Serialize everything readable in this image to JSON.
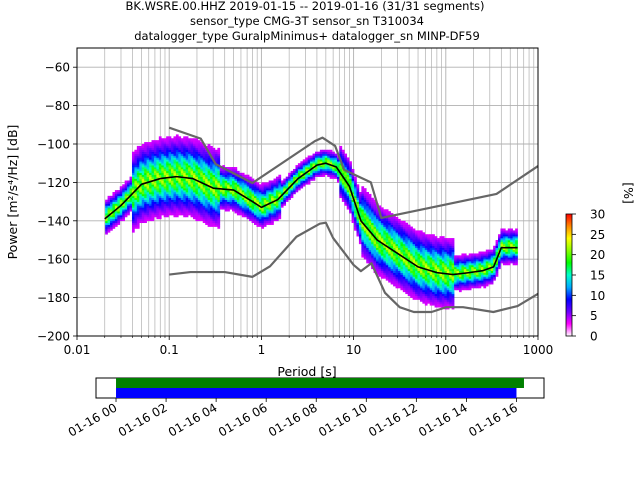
{
  "chart_data": {
    "type": "heatmap",
    "title_lines": [
      "BK.WSRE.00.HHZ   2019-01-15 -- 2019-01-16  (31/31 segments)",
      "sensor_type CMG-3T sensor_sn T310034",
      "datalogger_type GuralpMinimus+ datalogger_sn MINP-DF59"
    ],
    "xlabel": "Period [s]",
    "ylabel": "Power [m²/s⁴/Hz] [dB]",
    "x_scale": "log",
    "xlim": [
      0.01,
      1000
    ],
    "ylim": [
      -200,
      -50
    ],
    "x_ticks": [
      0.01,
      0.1,
      1,
      10,
      100,
      1000
    ],
    "x_tick_labels": [
      "0.01",
      "0.1",
      "1",
      "10",
      "100",
      "1000"
    ],
    "y_ticks": [
      -200,
      -180,
      -160,
      -140,
      -120,
      -100,
      -80,
      -60
    ],
    "y_tick_labels": [
      "−200",
      "−180",
      "−160",
      "−140",
      "−120",
      "−100",
      "−80",
      "−60"
    ],
    "grid": true,
    "colorbar": {
      "label": "[%]",
      "min": 0,
      "max": 30,
      "ticks": [
        0,
        5,
        10,
        15,
        20,
        25,
        30
      ],
      "tick_labels": [
        "0",
        "5",
        "10",
        "15",
        "20",
        "25",
        "30"
      ],
      "colormap": [
        "#ffffff",
        "#ff00ff",
        "#6a00ff",
        "#0000ff",
        "#00aaff",
        "#00ffcc",
        "#00ff00",
        "#88ff00",
        "#ffff00",
        "#ff8800",
        "#ff0000"
      ]
    },
    "series": [
      {
        "role": "noise-model-high",
        "color": "#666666",
        "points": [
          [
            0.1,
            -91.5
          ],
          [
            0.22,
            -97.2
          ],
          [
            0.32,
            -110.5
          ],
          [
            0.8,
            -120.3
          ],
          [
            3.8,
            -98.5
          ],
          [
            4.6,
            -96.7
          ],
          [
            6.3,
            -101
          ],
          [
            7.9,
            -113.5
          ],
          [
            15.4,
            -120
          ],
          [
            20,
            -138.5
          ],
          [
            354.8,
            -126
          ],
          [
            1000,
            -111.5
          ]
        ]
      },
      {
        "role": "noise-model-low",
        "color": "#666666",
        "points": [
          [
            0.1,
            -168
          ],
          [
            0.17,
            -166.7
          ],
          [
            0.4,
            -166.7
          ],
          [
            0.8,
            -169.2
          ],
          [
            1.24,
            -163.7
          ],
          [
            2.4,
            -148.3
          ],
          [
            4.3,
            -141.5
          ],
          [
            5,
            -141
          ],
          [
            6,
            -149
          ],
          [
            10,
            -163
          ],
          [
            12,
            -166.2
          ],
          [
            15.6,
            -162.1
          ],
          [
            21.9,
            -177.5
          ],
          [
            31.6,
            -185
          ],
          [
            45,
            -187.5
          ],
          [
            70,
            -187.5
          ],
          [
            101,
            -185
          ],
          [
            154,
            -185
          ],
          [
            328,
            -187.5
          ],
          [
            600,
            -184.4
          ],
          [
            1000,
            -178
          ]
        ]
      },
      {
        "role": "mode",
        "color": "#000000",
        "points": [
          [
            0.02,
            -139
          ],
          [
            0.03,
            -132
          ],
          [
            0.05,
            -121
          ],
          [
            0.08,
            -118
          ],
          [
            0.12,
            -117
          ],
          [
            0.18,
            -118
          ],
          [
            0.3,
            -123
          ],
          [
            0.5,
            -124
          ],
          [
            0.8,
            -130
          ],
          [
            1,
            -133
          ],
          [
            1.5,
            -129
          ],
          [
            2.5,
            -118
          ],
          [
            4,
            -111
          ],
          [
            5,
            -110
          ],
          [
            6.5,
            -112
          ],
          [
            9,
            -122
          ],
          [
            12,
            -140
          ],
          [
            18,
            -150
          ],
          [
            30,
            -157
          ],
          [
            50,
            -164
          ],
          [
            80,
            -167
          ],
          [
            120,
            -168
          ],
          [
            180,
            -167
          ],
          [
            250,
            -166
          ],
          [
            330,
            -164
          ],
          [
            400,
            -154
          ],
          [
            600,
            -154
          ]
        ]
      }
    ],
    "lower_panel": {
      "x_tick_labels": [
        "01-16 00",
        "01-16 02",
        "01-16 04",
        "01-16 06",
        "01-16 08",
        "01-16 10",
        "01-16 12",
        "01-16 14",
        "01-16 16"
      ],
      "bars": [
        {
          "color": "#008000",
          "start_h": 0,
          "end_h": 16.3
        },
        {
          "color": "#0000ff",
          "start_h": 0,
          "end_h": 16.0
        }
      ],
      "x_range_h": [
        -0.8,
        17.1
      ]
    }
  }
}
